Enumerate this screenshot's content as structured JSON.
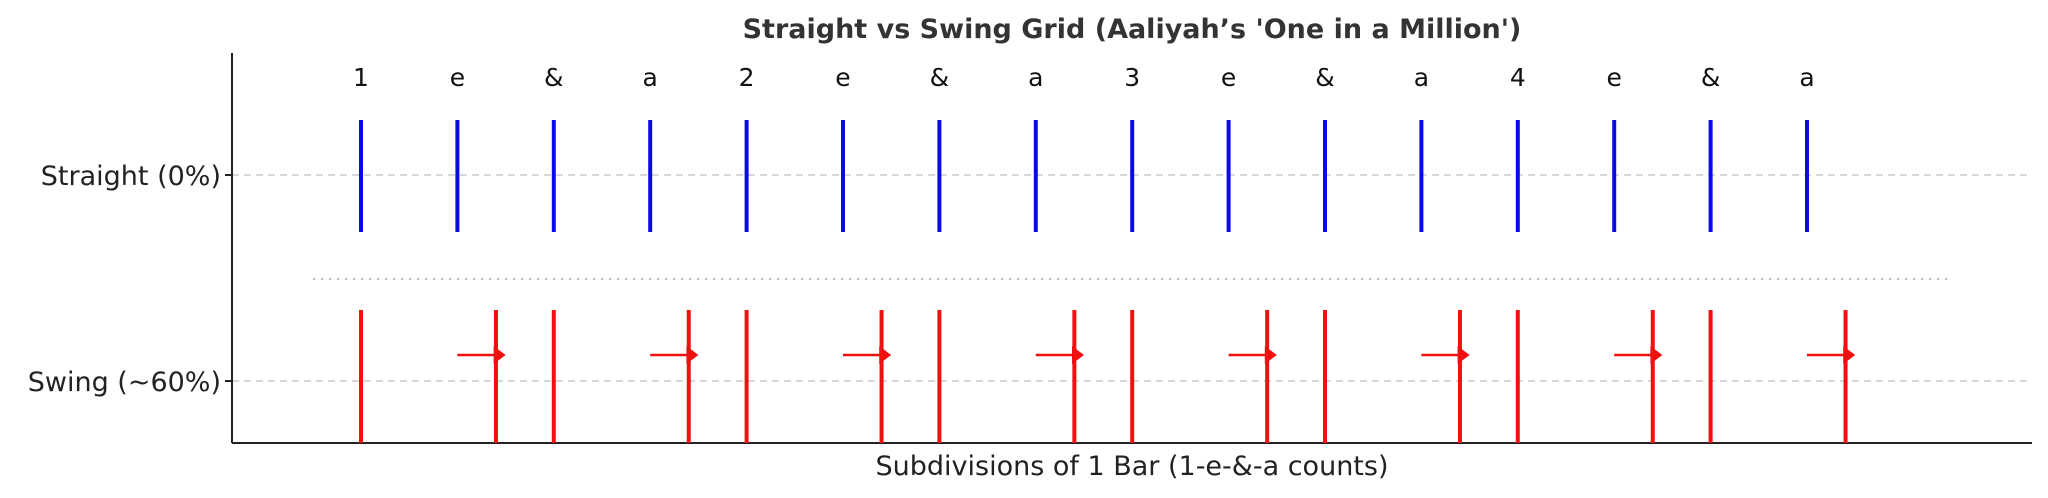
{
  "chart_data": {
    "type": "event-grid",
    "title": "Straight vs Swing Grid (Aaliyah’s 'One in a Million')",
    "xlabel": "Subdivisions of 1 Bar (1-e-&-a counts)",
    "ylabel": "",
    "counts": [
      "1",
      "e",
      "&",
      "a",
      "2",
      "e",
      "&",
      "a",
      "3",
      "e",
      "&",
      "a",
      "4",
      "e",
      "&",
      "a"
    ],
    "xlim": [
      -1.3,
      17.4
    ],
    "grid": "horizontal dashed at each row",
    "series": [
      {
        "name": "Straight (0%)",
        "color": "#0a0ae6",
        "positions": [
          0,
          1,
          2,
          3,
          4,
          5,
          6,
          7,
          8,
          9,
          10,
          11,
          12,
          13,
          14,
          15
        ]
      },
      {
        "name": "Swing (~60%)",
        "color": "#f01010",
        "positions": [
          0,
          1.4,
          2,
          3.4,
          4,
          5.4,
          6,
          7.4,
          8,
          9.4,
          10,
          11.4,
          12,
          13.4,
          14,
          15.4
        ],
        "arrows": [
          [
            1,
            1.5
          ],
          [
            3,
            3.5
          ],
          [
            5,
            5.5
          ],
          [
            7,
            7.5
          ],
          [
            9,
            9.5
          ],
          [
            11,
            11.5
          ],
          [
            13,
            13.5
          ],
          [
            15,
            15.5
          ]
        ]
      }
    ]
  }
}
